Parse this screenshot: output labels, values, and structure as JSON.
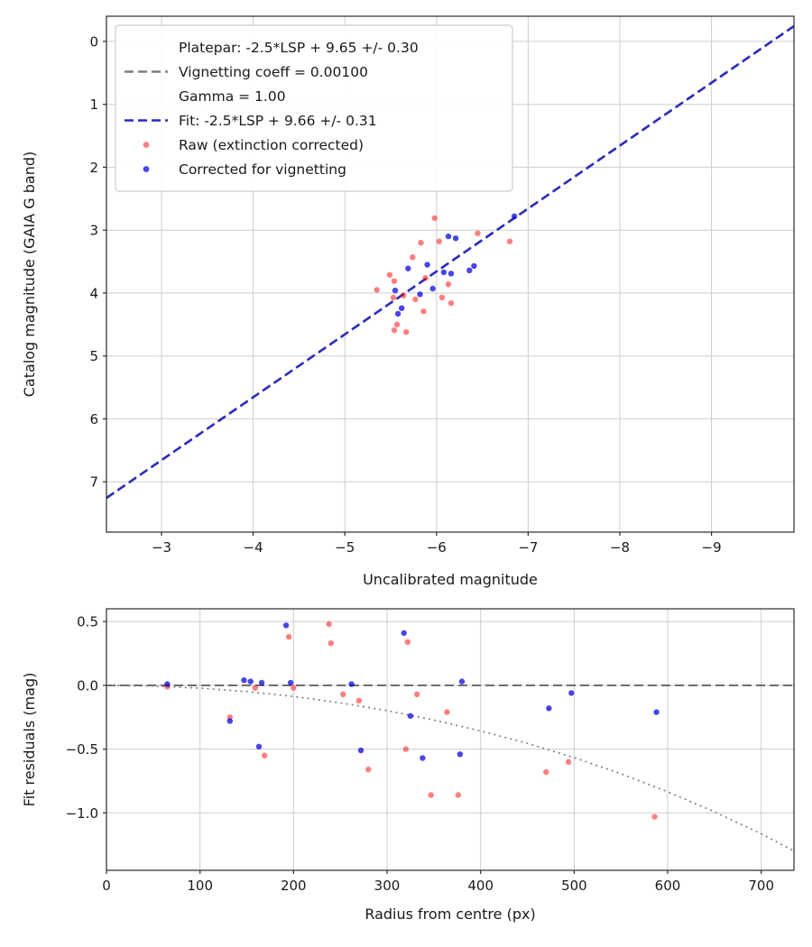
{
  "figure": {
    "background": "#ffffff"
  },
  "theme": {
    "grid_color": "#cdcdcd",
    "frame_color": "#2a2a2a",
    "text_color": "#1a1a1a",
    "tick_font": 15,
    "label_font": 16,
    "legend_font": 15.5,
    "fit_blue": "#2929c8",
    "platepar_gray": "#7f7f7f",
    "raw_red": "#ff0000",
    "corrected_blue": "#0000dd"
  },
  "chart_data": [
    {
      "type": "scatter",
      "title": "",
      "xlabel": "Uncalibrated magnitude",
      "ylabel": "Catalog magnitude (GAIA G band)",
      "x_inverted": true,
      "y_inverted": true,
      "xlim": [
        -2.4,
        -9.9
      ],
      "ylim": [
        -0.4,
        7.8
      ],
      "grid": true,
      "xticks": {
        "values": [
          -3,
          -4,
          -5,
          -6,
          -7,
          -8,
          -9
        ],
        "labels": [
          "−3",
          "−4",
          "−5",
          "−6",
          "−7",
          "−8",
          "−9"
        ]
      },
      "yticks": {
        "values": [
          0,
          1,
          2,
          3,
          4,
          5,
          6,
          7
        ],
        "labels": [
          "0",
          "1",
          "2",
          "3",
          "4",
          "5",
          "6",
          "7"
        ]
      },
      "legend": {
        "position": "upper-left",
        "entries": [
          {
            "marker": "dashed-line",
            "color": "#7f7f7f",
            "marker_line": 1,
            "lines": [
              "Platepar: -2.5*LSP + 9.65 +/- 0.30",
              "Vignetting coeff = 0.00100",
              "Gamma = 1.00"
            ]
          },
          {
            "marker": "dashed-line",
            "color": "#2929c8",
            "marker_line": 0,
            "lines": [
              "Fit: -2.5*LSP + 9.66 +/- 0.31"
            ]
          },
          {
            "marker": "dot",
            "color": "#ff0000",
            "opacity": 0.5,
            "marker_line": 0,
            "lines": [
              "Raw (extinction corrected)"
            ]
          },
          {
            "marker": "dot",
            "color": "#0000dd",
            "opacity": 0.72,
            "marker_line": 0,
            "lines": [
              "Corrected for vignetting"
            ]
          }
        ]
      },
      "series": [
        {
          "id": "platepar-line",
          "name": "Platepar: -2.5*LSP + 9.65 +/- 0.30",
          "type": "line",
          "style": "dashed",
          "color": "#7f7f7f",
          "width": 2.2,
          "points": [
            [
              -2.4,
              7.25
            ],
            [
              -9.9,
              -0.25
            ]
          ]
        },
        {
          "id": "fit-line",
          "name": "Fit: -2.5*LSP + 9.66 +/- 0.31",
          "type": "line",
          "style": "dashed",
          "color": "#2929c8",
          "width": 2.3,
          "points": [
            [
              -2.4,
              7.26
            ],
            [
              -9.9,
              -0.24
            ]
          ]
        },
        {
          "id": "raw-points",
          "name": "Raw (extinction corrected)",
          "type": "scatter",
          "color": "#ff0000",
          "opacity": 0.5,
          "size": 3.2,
          "points": [
            [
              -5.98,
              2.81
            ],
            [
              -5.83,
              3.2
            ],
            [
              -6.03,
              3.18
            ],
            [
              -5.74,
              3.43
            ],
            [
              -6.8,
              3.18
            ],
            [
              -5.49,
              3.71
            ],
            [
              -5.54,
              3.81
            ],
            [
              -5.88,
              3.76
            ],
            [
              -6.13,
              3.86
            ],
            [
              -5.53,
              4.07
            ],
            [
              -5.64,
              4.04
            ],
            [
              -5.77,
              4.1
            ],
            [
              -6.06,
              4.07
            ],
            [
              -6.16,
              4.16
            ],
            [
              -5.86,
              4.29
            ],
            [
              -5.57,
              4.5
            ],
            [
              -5.67,
              4.62
            ],
            [
              -5.54,
              4.59
            ],
            [
              -5.35,
              3.95
            ],
            [
              -6.45,
              3.05
            ]
          ]
        },
        {
          "id": "corrected-points",
          "name": "Corrected for vignetting",
          "type": "scatter",
          "color": "#0000dd",
          "opacity": 0.72,
          "size": 3.2,
          "points": [
            [
              -6.85,
              2.78
            ],
            [
              -6.13,
              3.1
            ],
            [
              -6.21,
              3.13
            ],
            [
              -5.69,
              3.61
            ],
            [
              -6.08,
              3.67
            ],
            [
              -6.16,
              3.69
            ],
            [
              -5.55,
              3.96
            ],
            [
              -5.96,
              3.93
            ],
            [
              -5.82,
              4.02
            ],
            [
              -5.62,
              4.24
            ],
            [
              -6.36,
              3.64
            ],
            [
              -6.41,
              3.57
            ],
            [
              -5.9,
              3.55
            ],
            [
              -5.58,
              4.33
            ]
          ]
        }
      ]
    },
    {
      "type": "scatter",
      "title": "",
      "xlabel": "Radius from centre (px)",
      "ylabel": "Fit residuals (mag)",
      "x_inverted": false,
      "y_inverted": false,
      "xlim": [
        0,
        735
      ],
      "ylim": [
        0.6,
        -1.45
      ],
      "grid": true,
      "xticks": {
        "values": [
          0,
          100,
          200,
          300,
          400,
          500,
          600,
          700
        ],
        "labels": [
          "0",
          "100",
          "200",
          "300",
          "400",
          "500",
          "600",
          "700"
        ]
      },
      "yticks": {
        "values": [
          0.5,
          0,
          -0.5,
          -1
        ],
        "labels": [
          "0.5",
          "0.0",
          "−0.5",
          "−1.0"
        ]
      },
      "legend": null,
      "series": [
        {
          "id": "zero-line",
          "name": "Zero residual line",
          "type": "line",
          "style": "dashed",
          "color": "#595959",
          "width": 1.8,
          "points": [
            [
              0,
              0
            ],
            [
              735,
              0
            ]
          ]
        },
        {
          "id": "vignetting-curve",
          "name": "Vignetting model (coeff 0.00100)",
          "type": "line",
          "style": "dotted",
          "color": "#808080",
          "width": 1.7,
          "points": [
            [
              0,
              0
            ],
            [
              50,
              -0.005
            ],
            [
              100,
              -0.022
            ],
            [
              150,
              -0.049
            ],
            [
              200,
              -0.087
            ],
            [
              250,
              -0.137
            ],
            [
              300,
              -0.198
            ],
            [
              350,
              -0.272
            ],
            [
              400,
              -0.357
            ],
            [
              450,
              -0.455
            ],
            [
              500,
              -0.567
            ],
            [
              550,
              -0.693
            ],
            [
              600,
              -0.834
            ],
            [
              650,
              -0.991
            ],
            [
              700,
              -1.164
            ],
            [
              735,
              -1.297
            ]
          ]
        },
        {
          "id": "raw-residuals",
          "name": "Raw (extinction corrected)",
          "type": "scatter",
          "color": "#ff0000",
          "opacity": 0.5,
          "size": 3.2,
          "points": [
            [
              65,
              -0.01
            ],
            [
              132,
              -0.25
            ],
            [
              159,
              -0.02
            ],
            [
              169,
              -0.55
            ],
            [
              195,
              0.38
            ],
            [
              200,
              -0.02
            ],
            [
              238,
              0.48
            ],
            [
              240,
              0.33
            ],
            [
              253,
              -0.07
            ],
            [
              270,
              -0.12
            ],
            [
              280,
              -0.66
            ],
            [
              322,
              0.34
            ],
            [
              320,
              -0.5
            ],
            [
              332,
              -0.07
            ],
            [
              347,
              -0.86
            ],
            [
              364,
              -0.21
            ],
            [
              376,
              -0.86
            ],
            [
              470,
              -0.68
            ],
            [
              494,
              -0.6
            ],
            [
              586,
              -1.03
            ]
          ]
        },
        {
          "id": "corrected-residuals",
          "name": "Corrected for vignetting",
          "type": "scatter",
          "color": "#0000dd",
          "opacity": 0.72,
          "size": 3.2,
          "points": [
            [
              65,
              0.01
            ],
            [
              132,
              -0.28
            ],
            [
              147,
              0.04
            ],
            [
              154,
              0.03
            ],
            [
              166,
              0.02
            ],
            [
              163,
              -0.48
            ],
            [
              192,
              0.47
            ],
            [
              197,
              0.02
            ],
            [
              262,
              0.01
            ],
            [
              272,
              -0.51
            ],
            [
              318,
              0.41
            ],
            [
              325,
              -0.24
            ],
            [
              338,
              -0.57
            ],
            [
              378,
              -0.54
            ],
            [
              380,
              0.03
            ],
            [
              473,
              -0.18
            ],
            [
              497,
              -0.06
            ],
            [
              588,
              -0.21
            ]
          ]
        }
      ]
    }
  ]
}
